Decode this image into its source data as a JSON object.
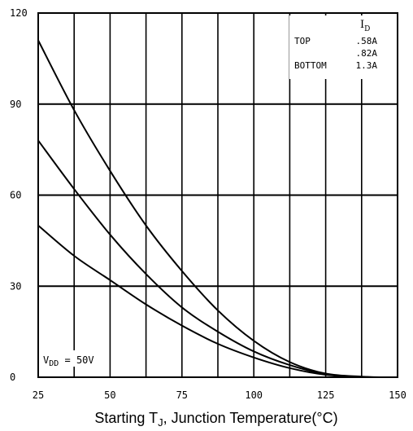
{
  "chart_data": {
    "type": "line",
    "title": "",
    "xlabel_parts": {
      "prefix": "Starting T",
      "sub": "J",
      "suffix": ", Junction Temperature(°C)"
    },
    "ylabel": "",
    "xlim": [
      25,
      150
    ],
    "ylim": [
      0,
      120
    ],
    "x_ticks": [
      "25",
      "50",
      "75",
      "100",
      "125",
      "150"
    ],
    "y_ticks": [
      "0",
      "30",
      "60",
      "90",
      "120"
    ],
    "x_grid_step": 12.5,
    "y_grid_step": 30,
    "grid": true,
    "legend": {
      "title": "I",
      "title_sub": "D",
      "rows": [
        {
          "label": "TOP",
          "value": ".58A"
        },
        {
          "label": "",
          "value": ".82A"
        },
        {
          "label": "BOTTOM",
          "value": "1.3A"
        }
      ],
      "placement": "top-right"
    },
    "annotation": {
      "prefix": "V",
      "sub": "DD",
      "suffix": " = 50V"
    },
    "series": [
      {
        "label": ".58A",
        "x": [
          25,
          37.5,
          50,
          62.5,
          75,
          87.5,
          100,
          112.5,
          125,
          137.5,
          145,
          150
        ],
        "y": [
          111,
          88,
          68,
          50,
          35,
          22,
          12,
          5,
          1.2,
          0.2,
          0,
          0
        ]
      },
      {
        "label": ".82A",
        "x": [
          25,
          37.5,
          50,
          62.5,
          75,
          87.5,
          100,
          112.5,
          125,
          137.5,
          145,
          150
        ],
        "y": [
          78,
          62,
          47,
          34,
          23,
          15,
          8.5,
          4,
          1,
          0.1,
          0,
          0
        ]
      },
      {
        "label": "1.3A",
        "x": [
          25,
          37.5,
          50,
          62.5,
          75,
          87.5,
          100,
          112.5,
          125,
          137.5,
          145,
          150
        ],
        "y": [
          50,
          40,
          32,
          24,
          17,
          11,
          6.5,
          3,
          0.8,
          0.1,
          0,
          0
        ]
      }
    ]
  }
}
